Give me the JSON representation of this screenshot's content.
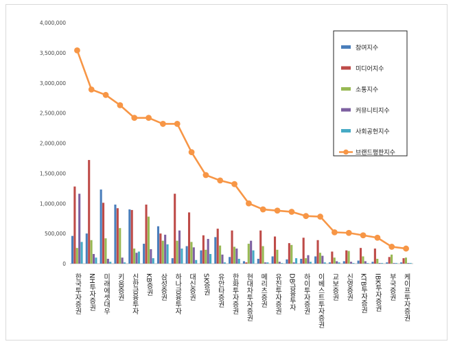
{
  "chart_data": {
    "type": "bar",
    "title": "",
    "xlabel": "",
    "ylabel": "",
    "ylim": [
      0,
      4000000
    ],
    "yticks": [
      "0",
      "500,000",
      "1,000,000",
      "1,500,000",
      "2,000,000",
      "2,500,000",
      "3,000,000",
      "3,500,000",
      "4,000,000"
    ],
    "grid": false,
    "legend_position": "top-right",
    "categories": [
      "한국투자증권",
      "NH투자증권",
      "미래에셋대우",
      "키움증권",
      "신한금융투자",
      "KB증권",
      "삼성증권",
      "하나금융투자",
      "대신증권",
      "SK증권",
      "유안타증권",
      "한화투자증권",
      "현대차투자증권",
      "메리츠증권",
      "유진투자증권",
      "DB금융투자",
      "하이투자증권",
      "이베스트투자증권",
      "교보증권",
      "신영증권",
      "KTB투자증권",
      "IBK투자증권",
      "부국증권",
      "케이프투자증권"
    ],
    "series": [
      {
        "name": "참여지수",
        "type": "bar",
        "color": "#4a7ebb",
        "values": [
          460000,
          500000,
          1230000,
          980000,
          900000,
          330000,
          620000,
          90000,
          290000,
          220000,
          440000,
          110000,
          40000,
          80000,
          120000,
          70000,
          80000,
          120000,
          20000,
          40000,
          50000,
          30000,
          20000,
          20000
        ]
      },
      {
        "name": "미디어지수",
        "type": "bar",
        "color": "#be4b48",
        "values": [
          1280000,
          1720000,
          1010000,
          920000,
          890000,
          980000,
          500000,
          1160000,
          850000,
          470000,
          580000,
          550000,
          20000,
          550000,
          450000,
          340000,
          430000,
          390000,
          200000,
          220000,
          260000,
          250000,
          110000,
          90000
        ]
      },
      {
        "name": "소통지수",
        "type": "bar",
        "color": "#98b954",
        "values": [
          260000,
          390000,
          420000,
          590000,
          250000,
          780000,
          380000,
          380000,
          360000,
          230000,
          300000,
          280000,
          330000,
          290000,
          230000,
          310000,
          90000,
          180000,
          100000,
          210000,
          120000,
          80000,
          150000,
          100000
        ]
      },
      {
        "name": "커뮤니티지수",
        "type": "bar",
        "color": "#7d60a0",
        "values": [
          1160000,
          160000,
          80000,
          100000,
          180000,
          240000,
          480000,
          550000,
          270000,
          410000,
          150000,
          250000,
          380000,
          20000,
          30000,
          20000,
          140000,
          130000,
          40000,
          30000,
          40000,
          10000,
          10000,
          10000
        ]
      },
      {
        "name": "사회공헌지수",
        "type": "bar",
        "color": "#46aac5",
        "values": [
          360000,
          100000,
          30000,
          20000,
          200000,
          90000,
          320000,
          250000,
          60000,
          160000,
          20000,
          80000,
          220000,
          20000,
          10000,
          90000,
          30000,
          20000,
          20000,
          10000,
          10000,
          10000,
          10000,
          10000
        ]
      },
      {
        "name": "브랜드평판지수",
        "type": "line",
        "color": "#f79646",
        "values": [
          3540000,
          2890000,
          2800000,
          2630000,
          2420000,
          2420000,
          2320000,
          2320000,
          1850000,
          1470000,
          1380000,
          1320000,
          1000000,
          900000,
          880000,
          860000,
          790000,
          780000,
          520000,
          510000,
          470000,
          430000,
          280000,
          250000
        ]
      }
    ]
  }
}
